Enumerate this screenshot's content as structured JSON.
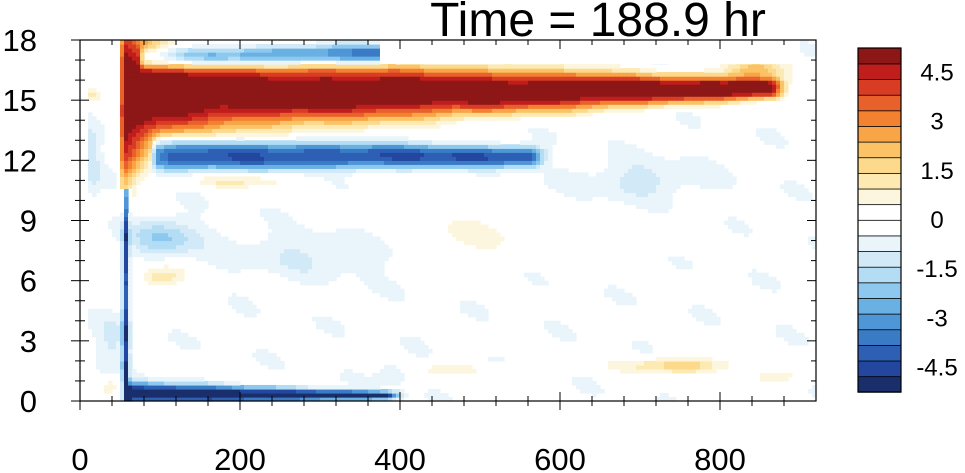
{
  "chart_data": {
    "type": "heatmap",
    "title": "Time = 188.9 hr",
    "xlabel": "",
    "ylabel": "",
    "xlim": [
      0,
      920
    ],
    "ylim": [
      0,
      18
    ],
    "x_ticks": [
      0,
      200,
      400,
      600,
      800
    ],
    "y_ticks": [
      0,
      3,
      6,
      9,
      12,
      15,
      18
    ],
    "grid": false,
    "colorbar": {
      "placement": "right",
      "levels": [
        -5.25,
        -4.75,
        -4.25,
        -3.75,
        -3.25,
        -2.75,
        -2.25,
        -1.75,
        -1.25,
        -0.75,
        -0.25,
        0.25,
        0.75,
        1.25,
        1.75,
        2.25,
        2.75,
        3.25,
        3.75,
        4.25,
        4.75,
        5.25
      ],
      "colors": [
        "#1a2e6b",
        "#23469e",
        "#2d5fb5",
        "#3a7bc6",
        "#4e96d6",
        "#69b0e3",
        "#8dc9ef",
        "#b3ddf5",
        "#d2eaf8",
        "#eaf5fb",
        "#ffffff",
        "#ffffff",
        "#fdf6de",
        "#fdeab3",
        "#fcd98b",
        "#fbc266",
        "#f8a447",
        "#f2822f",
        "#e8602a",
        "#d83d24",
        "#c01d1d",
        "#8d1616"
      ],
      "tick_labels": [
        "4.5",
        "3",
        "1.5",
        "0",
        "-1.5",
        "-3",
        "-4.5"
      ],
      "tick_values": [
        4.5,
        3,
        1.5,
        0,
        -1.5,
        -3,
        -4.5
      ]
    },
    "features": [
      {
        "kind": "band",
        "value": 6.0,
        "x0": 55,
        "x1": 860,
        "y_center": 15.3,
        "thickness": 2.0,
        "y_center_end": 15.6,
        "thickness_end": 0.5,
        "spread_start": 3.0
      },
      {
        "kind": "band",
        "value": -4.2,
        "x0": 95,
        "x1": 560,
        "y_center": 12.3,
        "thickness": 0.8,
        "y_center_end": 12.2,
        "thickness_end": 0.5
      },
      {
        "kind": "band",
        "value": -4.0,
        "x0": 80,
        "x1": 380,
        "y_center": 17.1,
        "thickness": 0.5,
        "y_center_end": 17.3,
        "thickness_end": 0.5
      },
      {
        "kind": "band",
        "value": -5.2,
        "x0": 60,
        "x1": 380,
        "y_center": 0.4,
        "thickness": 0.55,
        "y_center_end": 0.3,
        "thickness_end": 0.2
      },
      {
        "kind": "vline",
        "value": -4.5,
        "x": 57,
        "y0": 0.3,
        "y1": 10.2
      },
      {
        "kind": "blob",
        "value": -1.8,
        "x": 105,
        "y": 8.2,
        "rx": 40,
        "ry": 1.0
      },
      {
        "kind": "blob",
        "value": 1.8,
        "x": 100,
        "y": 6.2,
        "rx": 30,
        "ry": 0.6
      },
      {
        "kind": "blob",
        "value": 1.2,
        "x": 200,
        "y": 11.0,
        "rx": 70,
        "ry": 0.4
      },
      {
        "kind": "blob",
        "value": -0.9,
        "x": 300,
        "y": 7.5,
        "rx": 120,
        "ry": 1.2
      },
      {
        "kind": "blob",
        "value": 0.8,
        "x": 500,
        "y": 8.5,
        "rx": 180,
        "ry": 1.4
      },
      {
        "kind": "blob",
        "value": -1.0,
        "x": 700,
        "y": 11.0,
        "rx": 80,
        "ry": 1.0
      },
      {
        "kind": "blob",
        "value": 2.5,
        "x": 840,
        "y": 16.5,
        "rx": 40,
        "ry": 0.6
      },
      {
        "kind": "blob",
        "value": 2.2,
        "x": 750,
        "y": 1.8,
        "rx": 70,
        "ry": 0.4
      },
      {
        "kind": "blob",
        "value": 1.0,
        "x": 870,
        "y": 1.2,
        "rx": 50,
        "ry": 0.4
      },
      {
        "kind": "blob",
        "value": 1.0,
        "x": 460,
        "y": 1.6,
        "rx": 60,
        "ry": 0.3
      },
      {
        "kind": "blob",
        "value": -1.0,
        "x": 390,
        "y": 1.5,
        "rx": 20,
        "ry": 0.6
      },
      {
        "kind": "blob",
        "value": 1.2,
        "x": 15,
        "y": 15.3,
        "rx": 10,
        "ry": 0.5
      },
      {
        "kind": "blob",
        "value": -0.9,
        "x": 15,
        "y": 12.0,
        "rx": 12,
        "ry": 2.0
      },
      {
        "kind": "blob",
        "value": -0.8,
        "x": 40,
        "y": 3.0,
        "rx": 20,
        "ry": 1.5
      },
      {
        "kind": "blob",
        "value": 1.0,
        "x": 40,
        "y": 0.8,
        "rx": 15,
        "ry": 0.5
      }
    ]
  }
}
